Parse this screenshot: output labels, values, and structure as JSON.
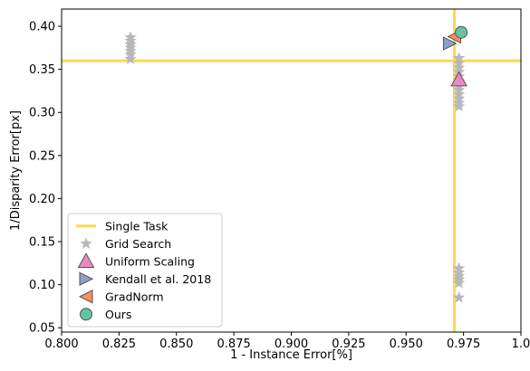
{
  "chart_data": {
    "type": "scatter",
    "xlabel": "1 - Instance Error[%]",
    "ylabel": "1/Disparity Error[px]",
    "xlim": [
      0.8,
      1.0
    ],
    "ylim": [
      0.045,
      0.42
    ],
    "x_ticks": [
      0.8,
      0.825,
      0.85,
      0.875,
      0.9,
      0.925,
      0.95,
      0.975,
      1.0
    ],
    "x_tick_labels": [
      "0.800",
      "0.825",
      "0.850",
      "0.875",
      "0.900",
      "0.925",
      "0.950",
      "0.975",
      "1.0"
    ],
    "y_ticks": [
      0.05,
      0.1,
      0.15,
      0.2,
      0.25,
      0.3,
      0.35,
      0.4
    ],
    "y_tick_labels": [
      "0.05",
      "0.10",
      "0.15",
      "0.20",
      "0.25",
      "0.30",
      "0.35",
      "0.40"
    ],
    "grid": false,
    "legend_position": "lower-left",
    "single_task": {
      "name": "Single Task",
      "x": 0.971,
      "y": 0.36,
      "color": "#ffd84d"
    },
    "series": [
      {
        "name": "Grid Search",
        "marker": "star",
        "color": "#b8b8b8",
        "points": [
          [
            0.83,
            0.387
          ],
          [
            0.83,
            0.383
          ],
          [
            0.83,
            0.379
          ],
          [
            0.83,
            0.375
          ],
          [
            0.83,
            0.371
          ],
          [
            0.83,
            0.367
          ],
          [
            0.83,
            0.362
          ],
          [
            0.973,
            0.363
          ],
          [
            0.973,
            0.357
          ],
          [
            0.973,
            0.352
          ],
          [
            0.973,
            0.347
          ],
          [
            0.973,
            0.342
          ],
          [
            0.973,
            0.336
          ],
          [
            0.973,
            0.331
          ],
          [
            0.973,
            0.326
          ],
          [
            0.973,
            0.321
          ],
          [
            0.973,
            0.316
          ],
          [
            0.973,
            0.311
          ],
          [
            0.973,
            0.307
          ],
          [
            0.973,
            0.119
          ],
          [
            0.973,
            0.114
          ],
          [
            0.973,
            0.11
          ],
          [
            0.973,
            0.106
          ],
          [
            0.973,
            0.102
          ],
          [
            0.973,
            0.085
          ]
        ]
      },
      {
        "name": "Uniform Scaling",
        "marker": "triangle-up",
        "color": "#e78ac3",
        "points": [
          [
            0.973,
            0.338
          ]
        ]
      },
      {
        "name": "Kendall et al. 2018",
        "marker": "triangle-right",
        "color": "#8da0cb",
        "points": [
          [
            0.969,
            0.38
          ]
        ]
      },
      {
        "name": "GradNorm",
        "marker": "triangle-left",
        "color": "#fc8d62",
        "points": [
          [
            0.971,
            0.388
          ]
        ]
      },
      {
        "name": "Ours",
        "marker": "circle",
        "color": "#66c2a5",
        "points": [
          [
            0.974,
            0.393
          ]
        ]
      }
    ]
  }
}
